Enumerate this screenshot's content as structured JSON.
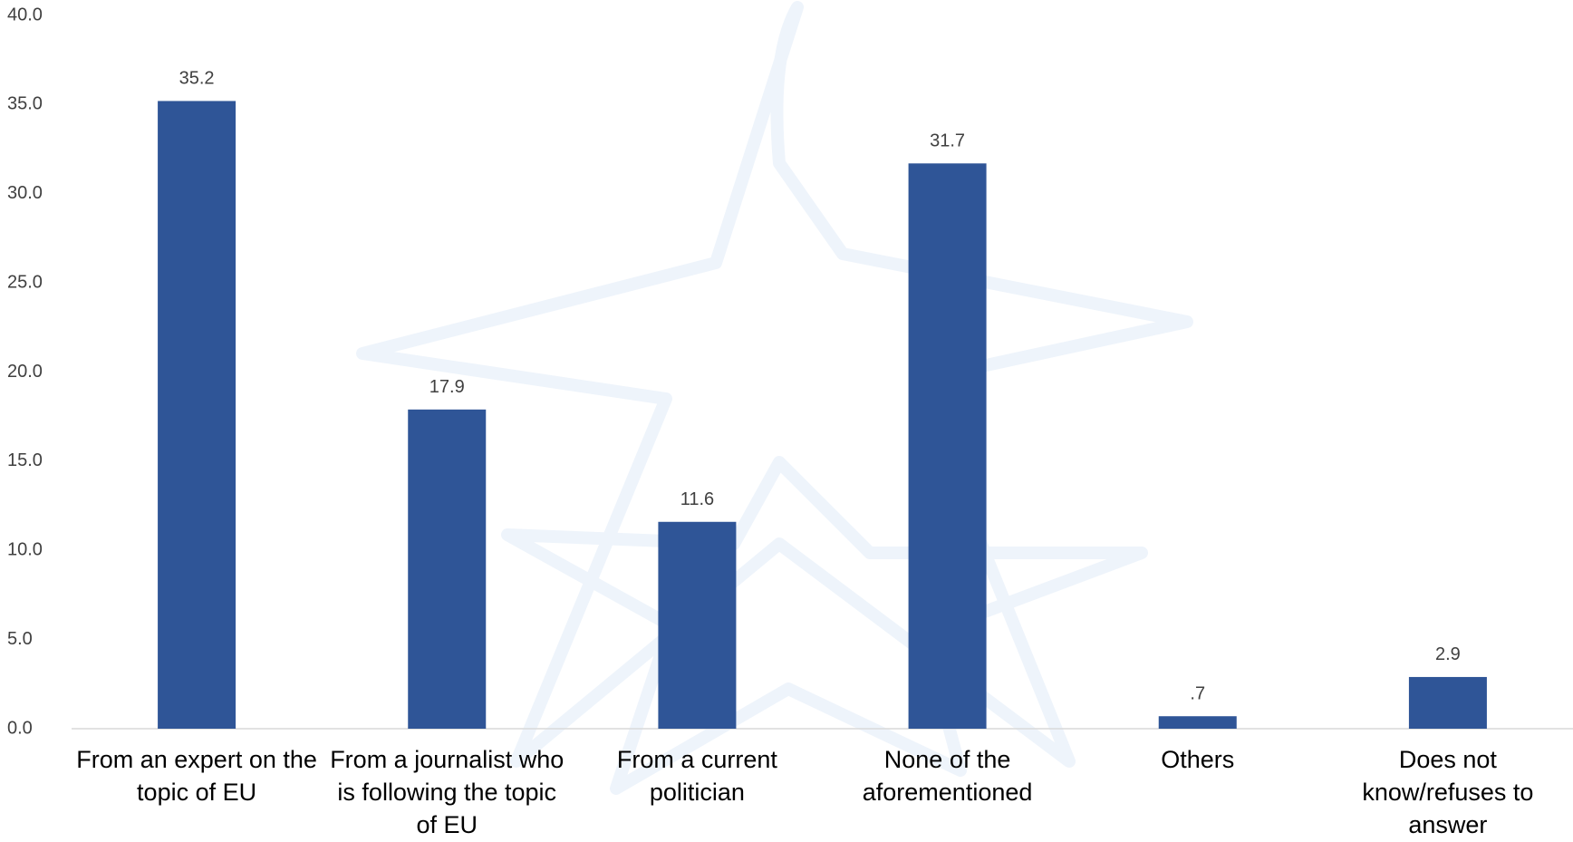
{
  "chart_data": {
    "type": "bar",
    "categories": [
      "From an expert on the topic of EU",
      "From a journalist who is following the topic of EU",
      "From a current politician",
      "None of the aforementioned",
      "Others",
      "Does not know/refuses to answer"
    ],
    "values": [
      35.2,
      17.9,
      11.6,
      31.7,
      0.7,
      2.9
    ],
    "value_labels": [
      "35.2",
      "17.9",
      "11.6",
      "31.7",
      ".7",
      "2.9"
    ],
    "color": "#2f5597",
    "ylim": [
      0,
      40
    ],
    "yticks": [
      {
        "value": 0,
        "label": "0.0"
      },
      {
        "value": 5,
        "label": "5.0"
      },
      {
        "value": 10,
        "label": "10.0"
      },
      {
        "value": 15,
        "label": "15.0"
      },
      {
        "value": 20,
        "label": "20.0"
      },
      {
        "value": 25,
        "label": "25.0"
      },
      {
        "value": 30,
        "label": "30.0"
      },
      {
        "value": 35,
        "label": "35.0"
      },
      {
        "value": 40,
        "label": "40.0"
      }
    ],
    "grid": false
  }
}
